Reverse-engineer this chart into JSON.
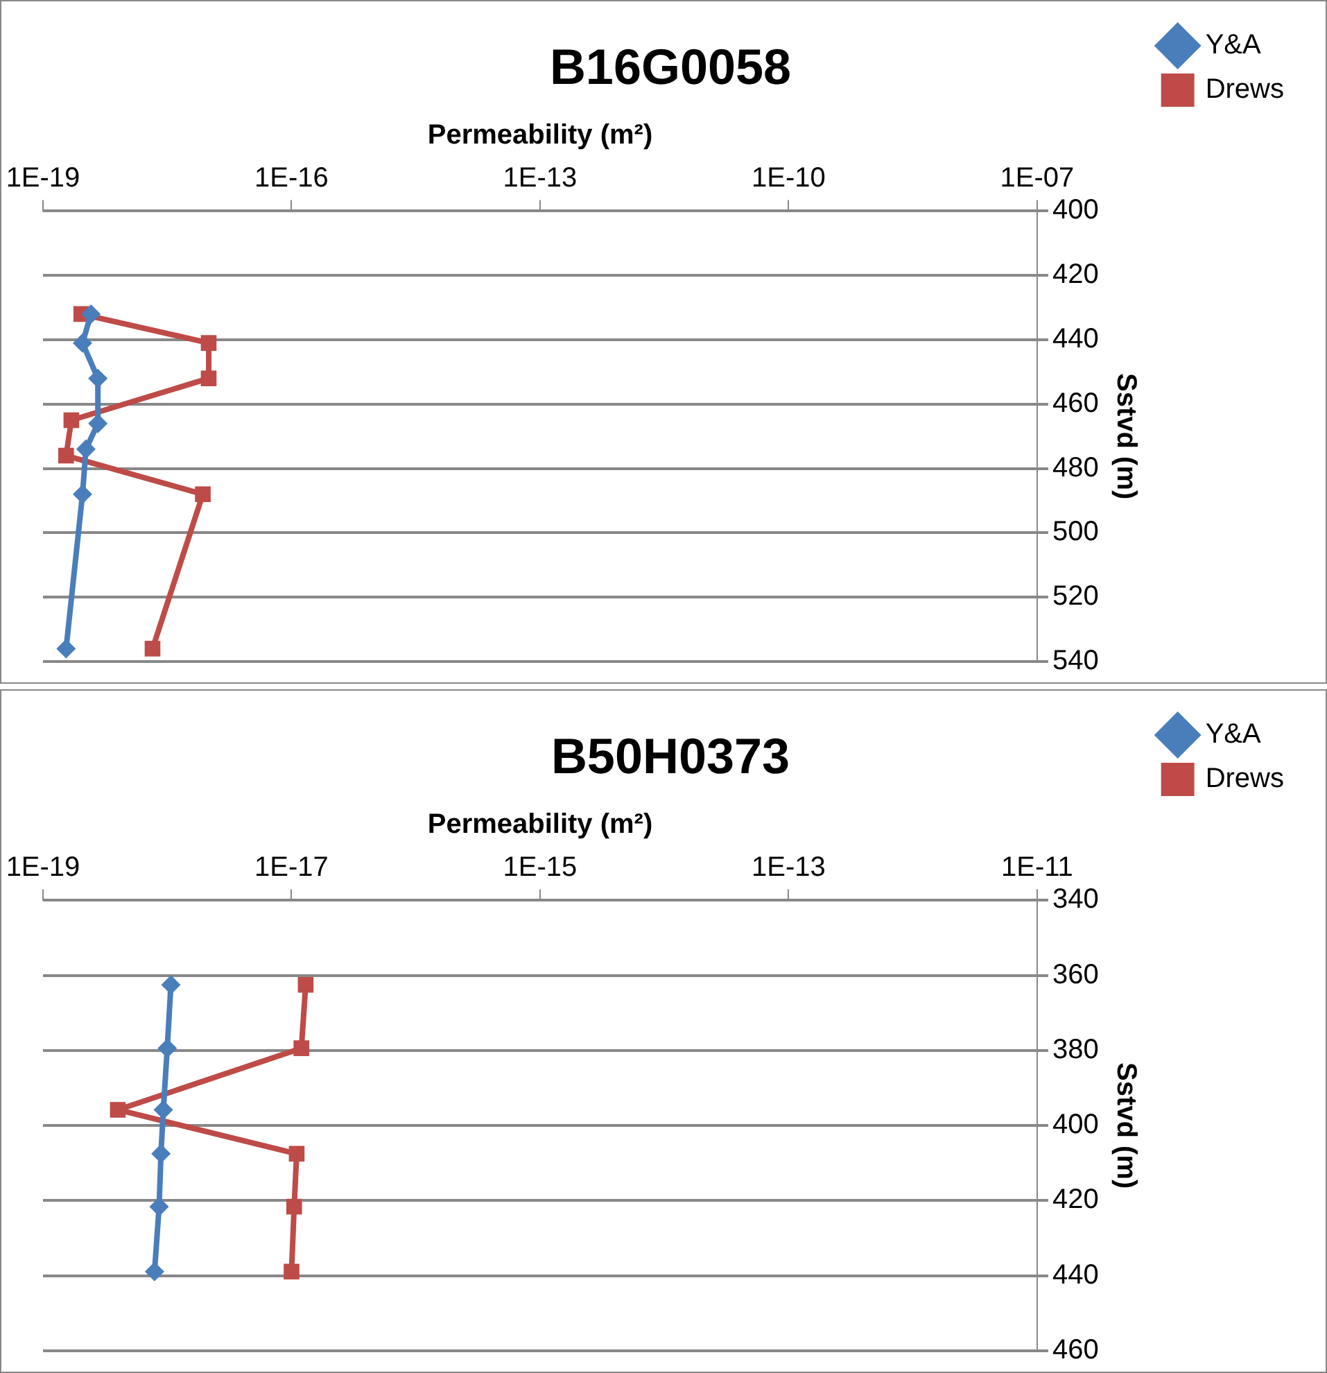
{
  "chart_data": [
    {
      "type": "line",
      "title": "B16G0058",
      "xlabel": "Permeability (m²)",
      "ylabel": "Sstvd (m)",
      "log": "x",
      "xlim": [
        1e-19,
        1e-07
      ],
      "xticks": [
        {
          "value": 1e-19,
          "label": "1E-19"
        },
        {
          "value": 1e-16,
          "label": "1E-16"
        },
        {
          "value": 1e-13,
          "label": "1E-13"
        },
        {
          "value": 1e-10,
          "label": "1E-10"
        },
        {
          "value": 1e-07,
          "label": "1E-07"
        }
      ],
      "ylim": [
        540,
        400
      ],
      "yticks": [
        400,
        420,
        440,
        460,
        480,
        500,
        520,
        540
      ],
      "grid": "y",
      "legend": "top right",
      "series": [
        {
          "name": "Y&A",
          "color": "#4a7ebb",
          "marker": "diamond",
          "x": [
            3.8e-19,
            3e-19,
            4.6e-19,
            4.6e-19,
            3.3e-19,
            3e-19,
            1.9e-19
          ],
          "values": [
            432,
            441,
            452,
            466,
            474,
            488,
            536
          ]
        },
        {
          "name": "Drews",
          "color": "#be4b48",
          "marker": "square",
          "x": [
            2.9e-19,
            1e-17,
            1e-17,
            2.2e-19,
            1.9e-19,
            8.5e-18,
            2.1e-18
          ],
          "values": [
            432,
            441,
            452,
            465,
            476,
            488,
            536
          ]
        }
      ]
    },
    {
      "type": "line",
      "title": "B50H0373",
      "xlabel": "Permeability (m²)",
      "ylabel": "Sstvd (m)",
      "log": "x",
      "xlim": [
        1e-19,
        1e-11
      ],
      "xticks": [
        {
          "value": 1e-19,
          "label": "1E-19"
        },
        {
          "value": 1e-17,
          "label": "1E-17"
        },
        {
          "value": 1e-15,
          "label": "1E-15"
        },
        {
          "value": 1e-13,
          "label": "1E-13"
        },
        {
          "value": 1e-11,
          "label": "1E-11"
        }
      ],
      "ylim": [
        460,
        340
      ],
      "yticks": [
        340,
        360,
        380,
        400,
        420,
        440,
        460
      ],
      "grid": "y",
      "legend": "top right",
      "series": [
        {
          "name": "Y&A",
          "color": "#4a7ebb",
          "marker": "diamond",
          "x": [
            1.07e-18,
            1e-18,
            9.3e-19,
            8.9e-19,
            8.6e-19,
            7.9e-19
          ],
          "values": [
            362.5,
            379.4,
            395.8,
            407.5,
            421.6,
            438.9
          ]
        },
        {
          "name": "Drews",
          "color": "#be4b48",
          "marker": "square",
          "x": [
            1.3e-17,
            1.2e-17,
            4e-19,
            1.1e-17,
            1.05e-17,
            1e-17
          ],
          "values": [
            362.5,
            379.4,
            395.8,
            407.5,
            421.6,
            438.9
          ]
        }
      ]
    }
  ]
}
